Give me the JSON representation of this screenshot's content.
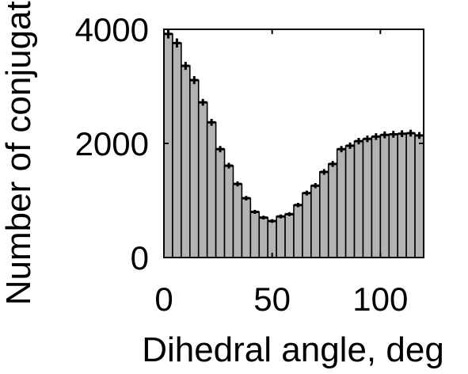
{
  "chart_data": {
    "type": "bar",
    "title": "",
    "xlabel": "Dihedral angle, deg",
    "ylabel": "Number of conjugates",
    "xlim": [
      0,
      120
    ],
    "ylim": [
      0,
      4000
    ],
    "xticks": [
      0,
      50,
      100
    ],
    "yticks": [
      0,
      2000,
      4000
    ],
    "bin_width": 4,
    "grid": false,
    "error_bars": true,
    "bar_color": "#b3b3b3",
    "edge_color": "#000000",
    "x": [
      2,
      6,
      10,
      14,
      18,
      22,
      26,
      30,
      34,
      38,
      42,
      46,
      50,
      54,
      58,
      62,
      66,
      70,
      74,
      78,
      82,
      86,
      90,
      94,
      98,
      102,
      106,
      110,
      114,
      118
    ],
    "values": [
      3920,
      3760,
      3360,
      3110,
      2720,
      2370,
      1900,
      1610,
      1290,
      1040,
      800,
      700,
      640,
      720,
      760,
      920,
      1130,
      1260,
      1500,
      1640,
      1900,
      1960,
      2040,
      2080,
      2120,
      2150,
      2160,
      2170,
      2180,
      2140
    ],
    "errors": [
      80,
      80,
      70,
      70,
      60,
      60,
      55,
      50,
      45,
      40,
      35,
      33,
      32,
      34,
      35,
      38,
      42,
      45,
      50,
      52,
      55,
      56,
      57,
      58,
      59,
      60,
      60,
      60,
      60,
      60
    ]
  }
}
